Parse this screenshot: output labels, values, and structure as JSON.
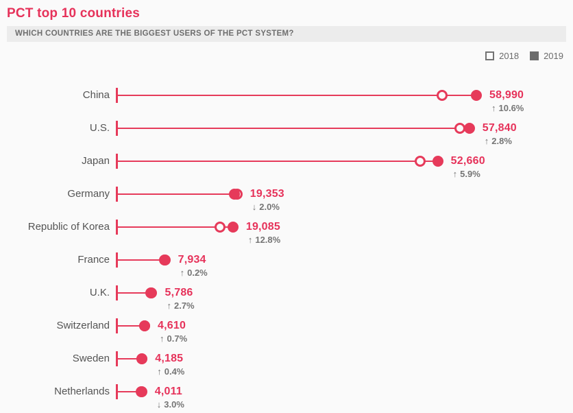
{
  "header": {
    "title": "PCT top 10 countries",
    "subtitle": "WHICH COUNTRIES ARE THE BIGGEST USERS OF THE PCT SYSTEM?"
  },
  "legend": {
    "items": [
      {
        "label": "2018",
        "swatch": "open-square"
      },
      {
        "label": "2019",
        "swatch": "filled-square"
      }
    ]
  },
  "icons": {
    "up_arrow": "↑",
    "down_arrow": "↓"
  },
  "colors": {
    "accent": "#e63a5a",
    "title": "#e6325a",
    "country_label": "#545454",
    "pct_label": "#757575",
    "subtitle_bg": "#ececec",
    "subtitle_text": "#6e6e6e",
    "legend_gray": "#6d6d6d",
    "page_bg": "#fafafa"
  },
  "chart_data": {
    "type": "scatter",
    "variant": "lollipop-dot-comparison",
    "title": "PCT top 10 countries",
    "subtitle": "WHICH COUNTRIES ARE THE BIGGEST USERS OF THE PCT SYSTEM?",
    "series": [
      {
        "name": "2018",
        "marker": "open-circle"
      },
      {
        "name": "2019",
        "marker": "filled-circle"
      }
    ],
    "axis": {
      "min": 0,
      "max": 59000,
      "gridlines": false,
      "legend_position": "top-right"
    },
    "rows": [
      {
        "country": "China",
        "value_2019": 58990,
        "value_2019_label": "58,990",
        "value_2018_est": 53336,
        "change_pct": "10.6%",
        "direction": "up"
      },
      {
        "country": "U.S.",
        "value_2019": 57840,
        "value_2019_label": "57,840",
        "value_2018_est": 56264,
        "change_pct": "2.8%",
        "direction": "up"
      },
      {
        "country": "Japan",
        "value_2019": 52660,
        "value_2019_label": "52,660",
        "value_2018_est": 49726,
        "change_pct": "5.9%",
        "direction": "up"
      },
      {
        "country": "Germany",
        "value_2019": 19353,
        "value_2019_label": "19,353",
        "value_2018_est": 19748,
        "change_pct": "2.0%",
        "direction": "down"
      },
      {
        "country": "Republic of Korea",
        "value_2019": 19085,
        "value_2019_label": "19,085",
        "value_2018_est": 16919,
        "change_pct": "12.8%",
        "direction": "up"
      },
      {
        "country": "France",
        "value_2019": 7934,
        "value_2019_label": "7,934",
        "value_2018_est": 7918,
        "change_pct": "0.2%",
        "direction": "up"
      },
      {
        "country": "U.K.",
        "value_2019": 5786,
        "value_2019_label": "5,786",
        "value_2018_est": 5634,
        "change_pct": "2.7%",
        "direction": "up"
      },
      {
        "country": "Switzerland",
        "value_2019": 4610,
        "value_2019_label": "4,610",
        "value_2018_est": 4578,
        "change_pct": "0.7%",
        "direction": "up"
      },
      {
        "country": "Sweden",
        "value_2019": 4185,
        "value_2019_label": "4,185",
        "value_2018_est": 4168,
        "change_pct": "0.4%",
        "direction": "up"
      },
      {
        "country": "Netherlands",
        "value_2019": 4011,
        "value_2019_label": "4,011",
        "value_2018_est": 4135,
        "change_pct": "3.0%",
        "direction": "down"
      }
    ]
  }
}
